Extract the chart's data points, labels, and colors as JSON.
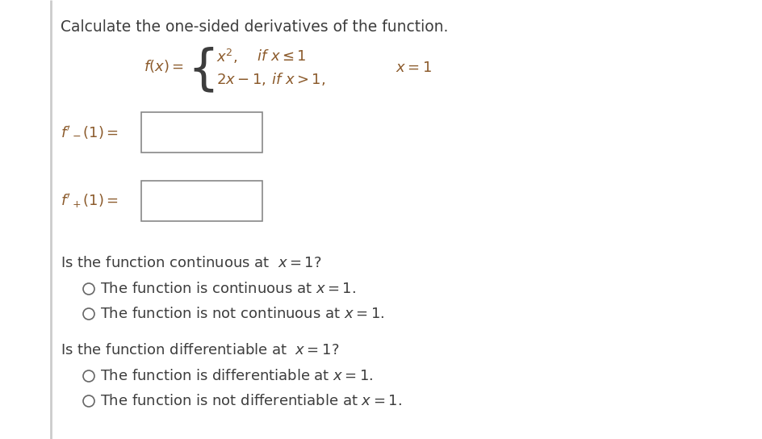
{
  "title": "Calculate the one-sided derivatives of the function.",
  "bg_color": "#ffffff",
  "dark": "#3d3d3d",
  "brown": "#8B5A2B",
  "box_edge": "#888888",
  "circle_color": "#666666",
  "fs_title": 13.5,
  "fs_body": 13.0,
  "fs_math": 13.0,
  "fs_brace": 40
}
